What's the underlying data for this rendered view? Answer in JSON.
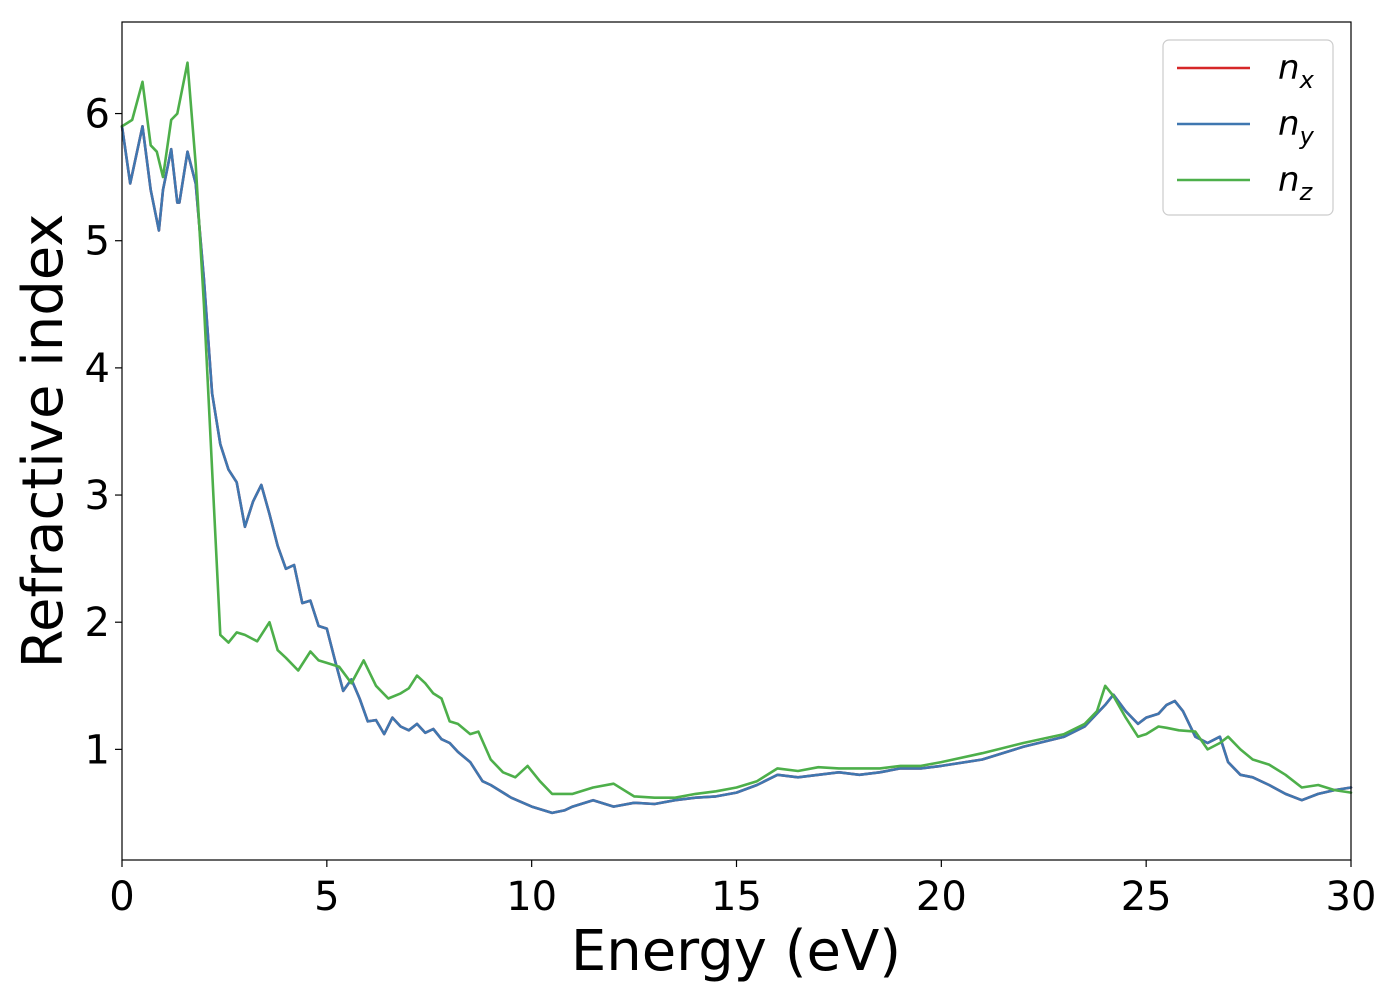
{
  "chart_data": {
    "type": "line",
    "title": "",
    "xlabel": "Energy (eV)",
    "ylabel": "Refractive index",
    "xlim": [
      0,
      30
    ],
    "ylim": [
      0.13,
      6.72
    ],
    "xticks": [
      0,
      5,
      10,
      15,
      20,
      25,
      30
    ],
    "yticks": [
      1,
      2,
      3,
      4,
      5,
      6
    ],
    "grid": false,
    "legend_position": "top-right",
    "series": [
      {
        "name": "n",
        "subscript": "x",
        "color": "#d62728",
        "x": [
          0,
          0.2,
          0.5,
          0.7,
          0.9,
          1.0,
          1.2,
          1.35,
          1.4,
          1.6,
          1.8,
          2.0,
          2.2,
          2.4,
          2.6,
          2.8,
          3.0,
          3.2,
          3.4,
          3.6,
          3.8,
          4.0,
          4.2,
          4.4,
          4.6,
          4.8,
          5.0,
          5.2,
          5.4,
          5.6,
          5.8,
          6.0,
          6.2,
          6.4,
          6.6,
          6.8,
          7.0,
          7.2,
          7.4,
          7.6,
          7.8,
          8.0,
          8.2,
          8.5,
          8.8,
          9.0,
          9.5,
          10.0,
          10.5,
          10.8,
          11.0,
          11.5,
          12.0,
          12.5,
          13.0,
          13.5,
          14.0,
          14.5,
          15.0,
          15.5,
          16.0,
          16.5,
          17.0,
          17.5,
          18.0,
          18.5,
          19.0,
          19.5,
          20.0,
          21.0,
          22.0,
          23.0,
          23.5,
          24.0,
          24.2,
          24.5,
          24.8,
          25.0,
          25.3,
          25.5,
          25.7,
          25.9,
          26.2,
          26.5,
          26.8,
          27.0,
          27.3,
          27.6,
          28.0,
          28.4,
          28.8,
          29.2,
          29.6,
          30.0
        ],
        "y": [
          5.9,
          5.45,
          5.9,
          5.4,
          5.08,
          5.4,
          5.72,
          5.3,
          5.3,
          5.7,
          5.45,
          4.7,
          3.8,
          3.4,
          3.2,
          3.1,
          2.75,
          2.95,
          3.08,
          2.85,
          2.6,
          2.42,
          2.45,
          2.15,
          2.17,
          1.97,
          1.95,
          1.7,
          1.46,
          1.55,
          1.4,
          1.22,
          1.23,
          1.12,
          1.25,
          1.18,
          1.15,
          1.2,
          1.13,
          1.16,
          1.08,
          1.05,
          0.98,
          0.9,
          0.75,
          0.72,
          0.62,
          0.55,
          0.5,
          0.52,
          0.55,
          0.6,
          0.55,
          0.58,
          0.57,
          0.6,
          0.62,
          0.63,
          0.66,
          0.72,
          0.8,
          0.78,
          0.8,
          0.82,
          0.8,
          0.82,
          0.85,
          0.85,
          0.87,
          0.92,
          1.02,
          1.1,
          1.18,
          1.35,
          1.43,
          1.3,
          1.2,
          1.25,
          1.28,
          1.35,
          1.38,
          1.3,
          1.1,
          1.05,
          1.1,
          0.9,
          0.8,
          0.78,
          0.72,
          0.65,
          0.6,
          0.65,
          0.68,
          0.7
        ]
      },
      {
        "name": "n",
        "subscript": "y",
        "color": "#3f77b0",
        "x": [
          0,
          0.2,
          0.5,
          0.7,
          0.9,
          1.0,
          1.2,
          1.35,
          1.4,
          1.6,
          1.8,
          2.0,
          2.2,
          2.4,
          2.6,
          2.8,
          3.0,
          3.2,
          3.4,
          3.6,
          3.8,
          4.0,
          4.2,
          4.4,
          4.6,
          4.8,
          5.0,
          5.2,
          5.4,
          5.6,
          5.8,
          6.0,
          6.2,
          6.4,
          6.6,
          6.8,
          7.0,
          7.2,
          7.4,
          7.6,
          7.8,
          8.0,
          8.2,
          8.5,
          8.8,
          9.0,
          9.5,
          10.0,
          10.5,
          10.8,
          11.0,
          11.5,
          12.0,
          12.5,
          13.0,
          13.5,
          14.0,
          14.5,
          15.0,
          15.5,
          16.0,
          16.5,
          17.0,
          17.5,
          18.0,
          18.5,
          19.0,
          19.5,
          20.0,
          21.0,
          22.0,
          23.0,
          23.5,
          24.0,
          24.2,
          24.5,
          24.8,
          25.0,
          25.3,
          25.5,
          25.7,
          25.9,
          26.2,
          26.5,
          26.8,
          27.0,
          27.3,
          27.6,
          28.0,
          28.4,
          28.8,
          29.2,
          29.6,
          30.0
        ],
        "y": [
          5.9,
          5.45,
          5.9,
          5.4,
          5.08,
          5.4,
          5.72,
          5.3,
          5.3,
          5.7,
          5.45,
          4.7,
          3.8,
          3.4,
          3.2,
          3.1,
          2.75,
          2.95,
          3.08,
          2.85,
          2.6,
          2.42,
          2.45,
          2.15,
          2.17,
          1.97,
          1.95,
          1.7,
          1.46,
          1.55,
          1.4,
          1.22,
          1.23,
          1.12,
          1.25,
          1.18,
          1.15,
          1.2,
          1.13,
          1.16,
          1.08,
          1.05,
          0.98,
          0.9,
          0.75,
          0.72,
          0.62,
          0.55,
          0.5,
          0.52,
          0.55,
          0.6,
          0.55,
          0.58,
          0.57,
          0.6,
          0.62,
          0.63,
          0.66,
          0.72,
          0.8,
          0.78,
          0.8,
          0.82,
          0.8,
          0.82,
          0.85,
          0.85,
          0.87,
          0.92,
          1.02,
          1.1,
          1.18,
          1.35,
          1.43,
          1.3,
          1.2,
          1.25,
          1.28,
          1.35,
          1.38,
          1.3,
          1.1,
          1.05,
          1.1,
          0.9,
          0.8,
          0.78,
          0.72,
          0.65,
          0.6,
          0.65,
          0.68,
          0.7
        ]
      },
      {
        "name": "n",
        "subscript": "z",
        "color": "#4daf4a",
        "x": [
          0,
          0.25,
          0.5,
          0.7,
          0.85,
          1.0,
          1.2,
          1.35,
          1.6,
          1.8,
          2.0,
          2.2,
          2.4,
          2.6,
          2.8,
          3.0,
          3.3,
          3.6,
          3.8,
          4.0,
          4.3,
          4.6,
          4.8,
          5.0,
          5.3,
          5.6,
          5.9,
          6.2,
          6.5,
          6.8,
          7.0,
          7.2,
          7.4,
          7.6,
          7.8,
          8.0,
          8.2,
          8.5,
          8.7,
          9.0,
          9.3,
          9.6,
          9.9,
          10.2,
          10.5,
          11.0,
          11.5,
          12.0,
          12.5,
          13.0,
          13.5,
          14.0,
          14.5,
          15.0,
          15.5,
          16.0,
          16.5,
          17.0,
          17.5,
          18.0,
          18.5,
          19.0,
          19.5,
          20.0,
          21.0,
          22.0,
          23.0,
          23.5,
          23.8,
          24.0,
          24.2,
          24.5,
          24.8,
          25.0,
          25.3,
          25.5,
          25.8,
          26.2,
          26.5,
          26.8,
          27.0,
          27.3,
          27.6,
          28.0,
          28.4,
          28.8,
          29.2,
          29.6,
          30.0
        ],
        "y": [
          5.9,
          5.95,
          6.25,
          5.75,
          5.7,
          5.5,
          5.95,
          6.0,
          6.4,
          5.6,
          4.5,
          3.2,
          1.9,
          1.84,
          1.92,
          1.9,
          1.85,
          2.0,
          1.78,
          1.72,
          1.62,
          1.77,
          1.7,
          1.68,
          1.65,
          1.52,
          1.7,
          1.5,
          1.4,
          1.44,
          1.48,
          1.58,
          1.52,
          1.44,
          1.4,
          1.22,
          1.2,
          1.12,
          1.14,
          0.92,
          0.82,
          0.78,
          0.87,
          0.75,
          0.65,
          0.65,
          0.7,
          0.73,
          0.63,
          0.62,
          0.62,
          0.65,
          0.67,
          0.7,
          0.75,
          0.85,
          0.83,
          0.86,
          0.85,
          0.85,
          0.85,
          0.87,
          0.87,
          0.9,
          0.97,
          1.05,
          1.12,
          1.2,
          1.3,
          1.5,
          1.42,
          1.25,
          1.1,
          1.12,
          1.18,
          1.17,
          1.15,
          1.14,
          1.0,
          1.05,
          1.1,
          1.0,
          0.92,
          0.88,
          0.8,
          0.7,
          0.72,
          0.68,
          0.66
        ]
      }
    ]
  }
}
